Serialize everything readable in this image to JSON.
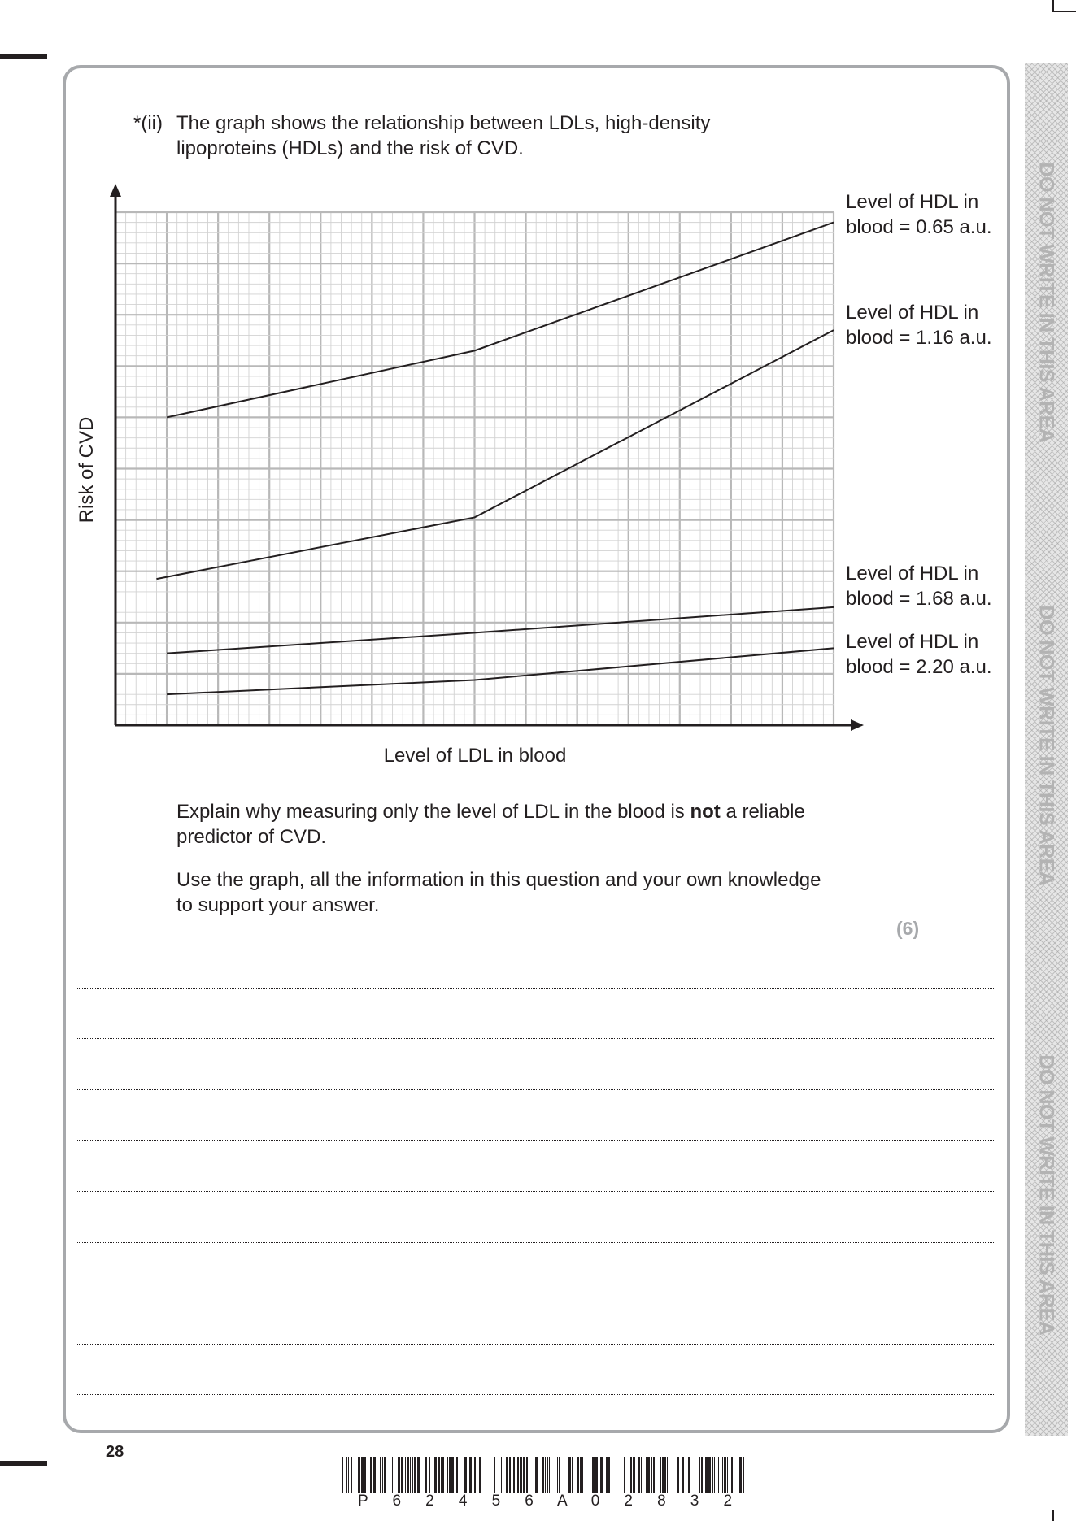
{
  "question": {
    "label": "*(ii)",
    "line1": "The graph shows the relationship between LDLs, high-density",
    "line2": "lipoproteins (HDLs) and the risk of CVD."
  },
  "chart_data": {
    "type": "line",
    "xlabel": "Level of LDL in blood",
    "ylabel": "Risk of CVD",
    "xlim": [
      0,
      14
    ],
    "ylim": [
      0,
      10
    ],
    "grid": true,
    "series": [
      {
        "name_line1": "Level of HDL in",
        "name_line2": "blood = 0.65 a.u.",
        "points": [
          [
            1,
            6
          ],
          [
            7,
            7.3
          ],
          [
            14,
            9.8
          ]
        ]
      },
      {
        "name_line1": "Level of HDL in",
        "name_line2": "blood = 1.16 a.u.",
        "points": [
          [
            0.8,
            2.85
          ],
          [
            7,
            4.05
          ],
          [
            14,
            7.7
          ]
        ]
      },
      {
        "name_line1": "Level of HDL in",
        "name_line2": "blood = 1.68 a.u.",
        "points": [
          [
            1,
            1.4
          ],
          [
            7,
            1.8
          ],
          [
            14,
            2.3
          ]
        ]
      },
      {
        "name_line1": "Level of HDL in",
        "name_line2": "blood = 2.20 a.u.",
        "points": [
          [
            1,
            0.6
          ],
          [
            7,
            0.88
          ],
          [
            14,
            1.5
          ]
        ]
      }
    ]
  },
  "instructions": {
    "explain_pre": "Explain why measuring only the level of LDL in the blood is ",
    "explain_bold": "not",
    "explain_post": " a reliable",
    "explain_line2": "predictor of CVD.",
    "use_line1": "Use the graph, all the information in this question and your own knowledge",
    "use_line2": "to support your answer."
  },
  "marks": "(6)",
  "margin_text": "DO NOT WRITE IN THIS AREA",
  "page_number": "28",
  "barcode_text": "P62456A02832"
}
